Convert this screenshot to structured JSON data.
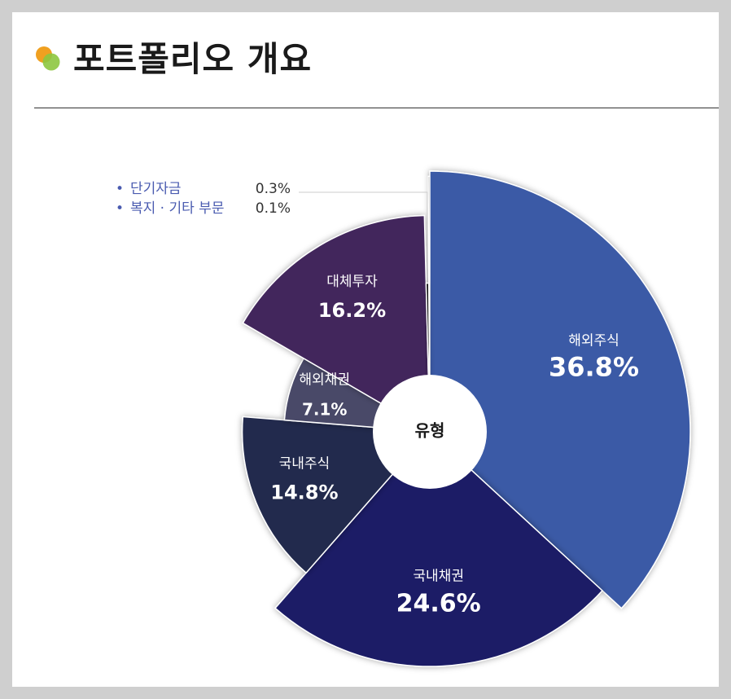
{
  "header": {
    "title": "포트폴리오 개요",
    "icon_colors": [
      "#f0a020",
      "#8dc63f"
    ]
  },
  "legend": [
    {
      "bullet": "•",
      "label": "단기자금",
      "value": "0.3%"
    },
    {
      "bullet": "•",
      "label": "복지 · 기타 부문",
      "value": "0.1%"
    }
  ],
  "chart_data": {
    "type": "pie",
    "title": "",
    "center_label": "유형",
    "start_angle_deg": 0,
    "direction": "clockwise",
    "slices": [
      {
        "name": "해외주식",
        "value": 36.8,
        "label": "36.8%",
        "color": "#3a5aa6"
      },
      {
        "name": "국내채권",
        "value": 24.6,
        "label": "24.6%",
        "color": "#1a1f66"
      },
      {
        "name": "국내주식",
        "value": 14.8,
        "label": "14.8%",
        "color": "#222a4e"
      },
      {
        "name": "해외채권",
        "value": 7.1,
        "label": "7.1%",
        "color": "#4a4a68"
      },
      {
        "name": "대체투자",
        "value": 16.2,
        "label": "16.2%",
        "color": "#42265c"
      },
      {
        "name": "단기자금",
        "value": 0.3,
        "label": "0.3%",
        "color": "#151515"
      },
      {
        "name": "복지 · 기타 부문",
        "value": 0.1,
        "label": "0.1%",
        "color": "#8a8a8a"
      }
    ],
    "relative_radius": [
      1.0,
      0.9,
      0.72,
      0.56,
      0.83,
      0.57,
      0.98
    ]
  }
}
